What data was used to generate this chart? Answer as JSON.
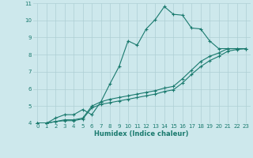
{
  "xlabel": "Humidex (Indice chaleur)",
  "xlim": [
    -0.5,
    23.5
  ],
  "ylim": [
    4,
    11
  ],
  "xticks": [
    0,
    1,
    2,
    3,
    4,
    5,
    6,
    7,
    8,
    9,
    10,
    11,
    12,
    13,
    14,
    15,
    16,
    17,
    18,
    19,
    20,
    21,
    22,
    23
  ],
  "yticks": [
    4,
    5,
    6,
    7,
    8,
    9,
    10,
    11
  ],
  "bg_color": "#cde8ec",
  "line_color": "#1a7a6e",
  "grid_color": "#aecfd4",
  "lines": [
    {
      "x": [
        0,
        1,
        2,
        3,
        4,
        5,
        6,
        7,
        8,
        9,
        10,
        11,
        12,
        13,
        14,
        15,
        16,
        17,
        18,
        19,
        20,
        21,
        22,
        23
      ],
      "y": [
        4.0,
        4.0,
        4.3,
        4.5,
        4.5,
        4.8,
        4.5,
        5.25,
        6.3,
        7.3,
        8.8,
        8.55,
        9.5,
        10.05,
        10.8,
        10.35,
        10.3,
        9.55,
        9.5,
        8.8,
        8.35,
        8.35,
        8.35,
        8.35
      ]
    },
    {
      "x": [
        0,
        1,
        2,
        3,
        4,
        5,
        6,
        7,
        8,
        9,
        10,
        11,
        12,
        13,
        14,
        15,
        16,
        17,
        18,
        19,
        20,
        21,
        22,
        23
      ],
      "y": [
        4.0,
        4.0,
        4.1,
        4.2,
        4.2,
        4.3,
        5.0,
        5.25,
        5.4,
        5.5,
        5.6,
        5.7,
        5.8,
        5.9,
        6.05,
        6.15,
        6.6,
        7.1,
        7.6,
        7.9,
        8.1,
        8.35,
        8.35,
        8.35
      ]
    },
    {
      "x": [
        0,
        1,
        2,
        3,
        4,
        5,
        6,
        7,
        8,
        9,
        10,
        11,
        12,
        13,
        14,
        15,
        16,
        17,
        18,
        19,
        20,
        21,
        22,
        23
      ],
      "y": [
        4.0,
        4.0,
        4.1,
        4.15,
        4.15,
        4.25,
        4.9,
        5.1,
        5.2,
        5.3,
        5.4,
        5.5,
        5.6,
        5.7,
        5.85,
        5.95,
        6.35,
        6.85,
        7.3,
        7.65,
        7.9,
        8.2,
        8.3,
        8.35
      ]
    }
  ]
}
